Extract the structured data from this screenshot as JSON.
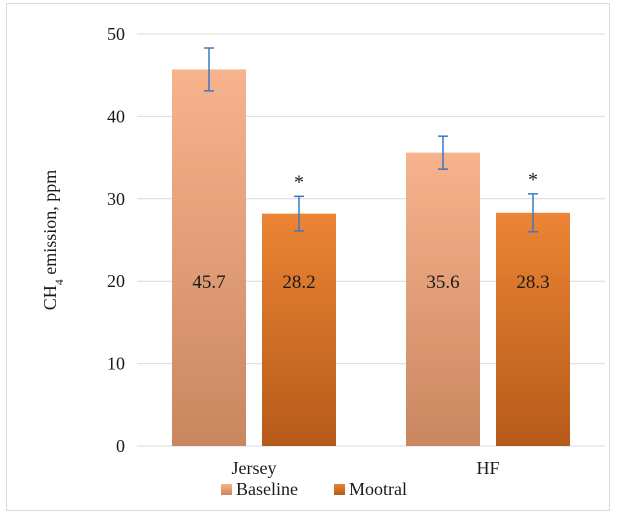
{
  "chart_data": {
    "type": "bar",
    "categories": [
      "Jersey",
      "HF"
    ],
    "series": [
      {
        "name": "Baseline",
        "values": [
          45.7,
          35.6
        ],
        "error": [
          2.6,
          2.0
        ],
        "labels": [
          "45.7",
          "35.6"
        ],
        "color_top": "#f7b38c",
        "color_bottom": "#c98760"
      },
      {
        "name": "Mootral",
        "values": [
          28.2,
          28.3
        ],
        "error": [
          2.1,
          2.3
        ],
        "labels": [
          "28.2",
          "28.3"
        ],
        "color_top": "#ec8434",
        "color_bottom": "#b55b1a",
        "annotations": [
          "*",
          "*"
        ]
      }
    ],
    "ylabel": "emission, ppm",
    "ylabel_main": "CH",
    "ylabel_sub": "4",
    "ylim": [
      0,
      50
    ],
    "yticks": [
      "0",
      "10",
      "20",
      "30",
      "40",
      "50"
    ],
    "grid": true,
    "legend": "bottom",
    "error_bar_color": "#3b78c4",
    "grid_color": "#d9d9d9"
  }
}
